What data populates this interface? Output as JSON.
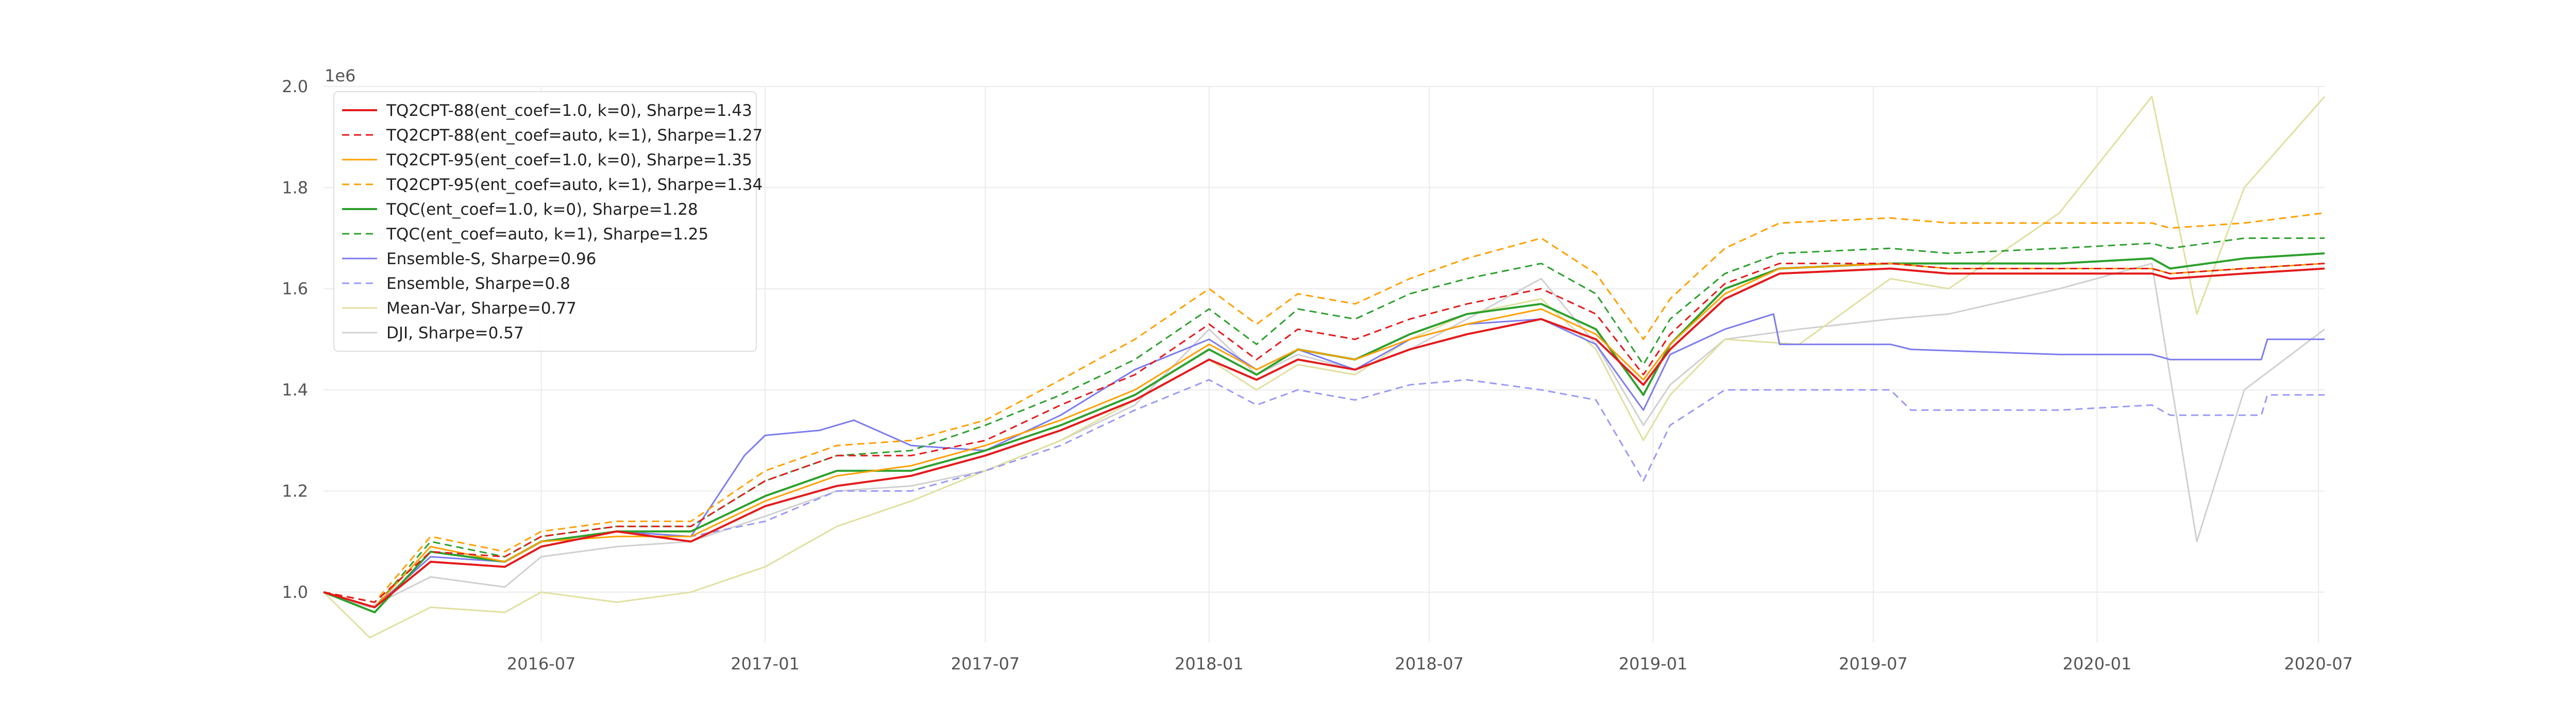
{
  "chart_data": {
    "type": "line",
    "exponent_label": "1e6",
    "xlim": [
      "2016-01-04",
      "2020-07-06"
    ],
    "ylim": [
      0.9,
      2.0
    ],
    "grid": true,
    "legend_position": "top-left",
    "x_ticks": [
      "2016-07",
      "2017-01",
      "2017-07",
      "2018-01",
      "2018-07",
      "2019-01",
      "2019-07",
      "2020-01",
      "2020-07"
    ],
    "y_ticks": [
      {
        "value": 1.0,
        "label": "1.0"
      },
      {
        "value": 1.2,
        "label": "1.2"
      },
      {
        "value": 1.4,
        "label": "1.4"
      },
      {
        "value": 1.6,
        "label": "1.6"
      },
      {
        "value": 1.8,
        "label": "1.8"
      },
      {
        "value": 2.0,
        "label": "2.0"
      }
    ],
    "series": [
      {
        "name": "TQ2CPT-88(ent_coef=1.0, k=0), Sharpe=1.43",
        "color": "#e41a1c",
        "dash": "solid",
        "width": 4,
        "x": [
          "2016-01-04",
          "2016-02-15",
          "2016-04-01",
          "2016-06-01",
          "2016-07-01",
          "2016-09-01",
          "2016-11-01",
          "2017-01-01",
          "2017-03-01",
          "2017-05-01",
          "2017-07-01",
          "2017-09-01",
          "2017-11-01",
          "2018-01-01",
          "2018-02-09",
          "2018-03-15",
          "2018-05-01",
          "2018-06-15",
          "2018-08-01",
          "2018-10-01",
          "2018-11-15",
          "2018-12-24",
          "2019-01-15",
          "2019-03-01",
          "2019-04-15",
          "2019-07-15",
          "2019-09-01",
          "2019-12-01",
          "2020-02-15",
          "2020-03-01",
          "2020-05-01",
          "2020-07-06"
        ],
        "y": [
          1.0,
          0.97,
          1.06,
          1.05,
          1.09,
          1.12,
          1.1,
          1.17,
          1.21,
          1.23,
          1.27,
          1.32,
          1.38,
          1.46,
          1.42,
          1.46,
          1.44,
          1.48,
          1.51,
          1.54,
          1.5,
          1.41,
          1.48,
          1.58,
          1.63,
          1.64,
          1.63,
          1.63,
          1.63,
          1.62,
          1.63,
          1.64
        ]
      },
      {
        "name": "TQ2CPT-88(ent_coef=auto, k=1), Sharpe=1.27",
        "color": "#e41a1c",
        "dash": "dashed",
        "width": 3,
        "x": [
          "2016-01-04",
          "2016-02-15",
          "2016-04-01",
          "2016-06-01",
          "2016-07-01",
          "2016-09-01",
          "2016-11-01",
          "2017-01-01",
          "2017-03-01",
          "2017-05-01",
          "2017-07-01",
          "2017-09-01",
          "2017-11-01",
          "2018-01-01",
          "2018-02-09",
          "2018-03-15",
          "2018-05-01",
          "2018-06-15",
          "2018-08-01",
          "2018-10-01",
          "2018-11-15",
          "2018-12-24",
          "2019-01-15",
          "2019-03-01",
          "2019-04-15",
          "2019-07-15",
          "2019-09-01",
          "2019-12-01",
          "2020-02-15",
          "2020-03-01",
          "2020-05-01",
          "2020-07-06"
        ],
        "y": [
          1.0,
          0.98,
          1.08,
          1.07,
          1.11,
          1.13,
          1.13,
          1.22,
          1.27,
          1.27,
          1.3,
          1.37,
          1.43,
          1.53,
          1.46,
          1.52,
          1.5,
          1.54,
          1.57,
          1.6,
          1.55,
          1.43,
          1.51,
          1.61,
          1.65,
          1.65,
          1.64,
          1.64,
          1.64,
          1.63,
          1.64,
          1.65
        ]
      },
      {
        "name": "TQ2CPT-95(ent_coef=1.0, k=0), Sharpe=1.35",
        "color": "#ff9f00",
        "dash": "solid",
        "width": 3,
        "x": [
          "2016-01-04",
          "2016-02-15",
          "2016-04-01",
          "2016-06-01",
          "2016-07-01",
          "2016-09-01",
          "2016-11-01",
          "2017-01-01",
          "2017-03-01",
          "2017-05-01",
          "2017-07-01",
          "2017-09-01",
          "2017-11-01",
          "2018-01-01",
          "2018-02-09",
          "2018-03-15",
          "2018-05-01",
          "2018-06-15",
          "2018-08-01",
          "2018-10-01",
          "2018-11-15",
          "2018-12-24",
          "2019-01-15",
          "2019-03-01",
          "2019-04-15",
          "2019-07-15",
          "2019-09-01",
          "2019-12-01",
          "2020-02-15",
          "2020-03-01",
          "2020-05-01",
          "2020-07-06"
        ],
        "y": [
          1.0,
          0.97,
          1.09,
          1.06,
          1.1,
          1.11,
          1.11,
          1.18,
          1.23,
          1.25,
          1.29,
          1.34,
          1.4,
          1.49,
          1.44,
          1.48,
          1.46,
          1.5,
          1.53,
          1.56,
          1.51,
          1.42,
          1.49,
          1.59,
          1.64,
          1.65,
          1.64,
          1.64,
          1.64,
          1.63,
          1.64,
          1.65
        ]
      },
      {
        "name": "TQ2CPT-95(ent_coef=auto, k=1), Sharpe=1.34",
        "color": "#ff9f00",
        "dash": "dashed",
        "width": 3,
        "x": [
          "2016-01-04",
          "2016-02-15",
          "2016-04-01",
          "2016-06-01",
          "2016-07-01",
          "2016-09-01",
          "2016-11-01",
          "2017-01-01",
          "2017-03-01",
          "2017-05-01",
          "2017-07-01",
          "2017-09-01",
          "2017-11-01",
          "2018-01-01",
          "2018-02-09",
          "2018-03-15",
          "2018-05-01",
          "2018-06-15",
          "2018-08-01",
          "2018-10-01",
          "2018-11-15",
          "2018-12-24",
          "2019-01-15",
          "2019-03-01",
          "2019-04-15",
          "2019-07-15",
          "2019-09-01",
          "2019-12-01",
          "2020-02-15",
          "2020-03-01",
          "2020-05-01",
          "2020-07-06"
        ],
        "y": [
          1.0,
          0.98,
          1.11,
          1.08,
          1.12,
          1.14,
          1.14,
          1.24,
          1.29,
          1.3,
          1.34,
          1.42,
          1.5,
          1.6,
          1.53,
          1.59,
          1.57,
          1.62,
          1.66,
          1.7,
          1.63,
          1.5,
          1.58,
          1.68,
          1.73,
          1.74,
          1.73,
          1.73,
          1.73,
          1.72,
          1.73,
          1.75
        ]
      },
      {
        "name": "TQC(ent_coef=1.0, k=0), Sharpe=1.28",
        "color": "#2ca02c",
        "dash": "solid",
        "width": 4,
        "x": [
          "2016-01-04",
          "2016-02-15",
          "2016-04-01",
          "2016-06-01",
          "2016-07-01",
          "2016-09-01",
          "2016-11-01",
          "2017-01-01",
          "2017-03-01",
          "2017-05-01",
          "2017-07-01",
          "2017-09-01",
          "2017-11-01",
          "2018-01-01",
          "2018-02-09",
          "2018-03-15",
          "2018-05-01",
          "2018-06-15",
          "2018-08-01",
          "2018-10-01",
          "2018-11-15",
          "2018-12-24",
          "2019-01-15",
          "2019-03-01",
          "2019-04-15",
          "2019-07-15",
          "2019-09-01",
          "2019-12-01",
          "2020-02-15",
          "2020-03-01",
          "2020-05-01",
          "2020-07-06"
        ],
        "y": [
          1.0,
          0.96,
          1.08,
          1.06,
          1.1,
          1.12,
          1.12,
          1.19,
          1.24,
          1.24,
          1.28,
          1.33,
          1.39,
          1.48,
          1.43,
          1.48,
          1.46,
          1.51,
          1.55,
          1.57,
          1.52,
          1.39,
          1.49,
          1.6,
          1.64,
          1.65,
          1.65,
          1.65,
          1.66,
          1.64,
          1.66,
          1.67
        ]
      },
      {
        "name": "TQC(ent_coef=auto, k=1), Sharpe=1.25",
        "color": "#2ca02c",
        "dash": "dashed",
        "width": 3,
        "x": [
          "2016-01-04",
          "2016-02-15",
          "2016-04-01",
          "2016-06-01",
          "2016-07-01",
          "2016-09-01",
          "2016-11-01",
          "2017-01-01",
          "2017-03-01",
          "2017-05-01",
          "2017-07-01",
          "2017-09-01",
          "2017-11-01",
          "2018-01-01",
          "2018-02-09",
          "2018-03-15",
          "2018-05-01",
          "2018-06-15",
          "2018-08-01",
          "2018-10-01",
          "2018-11-15",
          "2018-12-24",
          "2019-01-15",
          "2019-03-01",
          "2019-04-15",
          "2019-07-15",
          "2019-09-01",
          "2019-12-01",
          "2020-02-15",
          "2020-03-01",
          "2020-05-01",
          "2020-07-06"
        ],
        "y": [
          1.0,
          0.97,
          1.1,
          1.07,
          1.11,
          1.13,
          1.13,
          1.22,
          1.27,
          1.28,
          1.33,
          1.39,
          1.46,
          1.56,
          1.49,
          1.56,
          1.54,
          1.59,
          1.62,
          1.65,
          1.59,
          1.45,
          1.54,
          1.63,
          1.67,
          1.68,
          1.67,
          1.68,
          1.69,
          1.68,
          1.7,
          1.7
        ]
      },
      {
        "name": "Ensemble-S, Sharpe=0.96",
        "color": "#7b7bf0",
        "dash": "solid",
        "width": 3,
        "x": [
          "2016-01-04",
          "2016-02-15",
          "2016-04-01",
          "2016-06-01",
          "2016-07-01",
          "2016-09-01",
          "2016-11-01",
          "2016-12-15",
          "2017-01-01",
          "2017-02-15",
          "2017-03-15",
          "2017-05-01",
          "2017-07-01",
          "2017-09-01",
          "2017-11-01",
          "2018-01-01",
          "2018-02-09",
          "2018-03-15",
          "2018-05-01",
          "2018-06-15",
          "2018-08-01",
          "2018-10-01",
          "2018-11-15",
          "2018-12-24",
          "2019-01-15",
          "2019-03-01",
          "2019-04-10",
          "2019-04-15",
          "2019-07-15",
          "2019-08-01",
          "2019-12-01",
          "2020-02-15",
          "2020-03-01",
          "2020-05-15",
          "2020-05-20",
          "2020-07-06"
        ],
        "y": [
          1.0,
          0.97,
          1.07,
          1.06,
          1.1,
          1.12,
          1.11,
          1.27,
          1.31,
          1.32,
          1.34,
          1.29,
          1.28,
          1.35,
          1.44,
          1.5,
          1.44,
          1.48,
          1.44,
          1.5,
          1.53,
          1.54,
          1.49,
          1.36,
          1.47,
          1.52,
          1.55,
          1.49,
          1.49,
          1.48,
          1.47,
          1.47,
          1.46,
          1.46,
          1.5,
          1.5
        ]
      },
      {
        "name": "Ensemble, Sharpe=0.8",
        "color": "#9a9af5",
        "dash": "dashed",
        "width": 3,
        "x": [
          "2016-01-04",
          "2016-02-15",
          "2016-04-01",
          "2016-06-01",
          "2016-07-01",
          "2016-09-01",
          "2016-11-01",
          "2017-01-01",
          "2017-03-01",
          "2017-05-01",
          "2017-07-01",
          "2017-09-01",
          "2017-11-01",
          "2018-01-01",
          "2018-02-09",
          "2018-03-15",
          "2018-05-01",
          "2018-06-15",
          "2018-08-01",
          "2018-10-01",
          "2018-11-15",
          "2018-12-24",
          "2019-01-15",
          "2019-03-01",
          "2019-04-15",
          "2019-07-15",
          "2019-08-01",
          "2019-12-01",
          "2020-02-15",
          "2020-03-01",
          "2020-05-15",
          "2020-05-20",
          "2020-07-06"
        ],
        "y": [
          1.0,
          0.97,
          1.06,
          1.05,
          1.09,
          1.12,
          1.11,
          1.14,
          1.2,
          1.2,
          1.24,
          1.29,
          1.36,
          1.42,
          1.37,
          1.4,
          1.38,
          1.41,
          1.42,
          1.4,
          1.38,
          1.22,
          1.33,
          1.4,
          1.4,
          1.4,
          1.36,
          1.36,
          1.37,
          1.35,
          1.35,
          1.39,
          1.39
        ]
      },
      {
        "name": "Mean-Var, Sharpe=0.77",
        "color": "#e0e0a0",
        "dash": "solid",
        "width": 3,
        "x": [
          "2016-01-04",
          "2016-02-11",
          "2016-04-01",
          "2016-06-01",
          "2016-07-01",
          "2016-09-01",
          "2016-11-01",
          "2017-01-01",
          "2017-03-01",
          "2017-05-01",
          "2017-07-01",
          "2017-09-01",
          "2017-11-01",
          "2018-01-01",
          "2018-02-09",
          "2018-03-15",
          "2018-05-01",
          "2018-06-15",
          "2018-08-01",
          "2018-10-01",
          "2018-11-15",
          "2018-12-24",
          "2019-01-15",
          "2019-03-01",
          "2019-05-01",
          "2019-07-15",
          "2019-09-01",
          "2019-12-01",
          "2020-02-15",
          "2020-03-23",
          "2020-05-01",
          "2020-07-06"
        ],
        "y": [
          1.0,
          0.91,
          0.97,
          0.96,
          1.0,
          0.98,
          1.0,
          1.05,
          1.13,
          1.18,
          1.24,
          1.3,
          1.38,
          1.46,
          1.4,
          1.45,
          1.43,
          1.5,
          1.55,
          1.58,
          1.48,
          1.3,
          1.39,
          1.5,
          1.49,
          1.62,
          1.6,
          1.75,
          1.98,
          1.55,
          1.8,
          1.98
        ]
      },
      {
        "name": "DJI, Sharpe=0.57",
        "color": "#d0d0d0",
        "dash": "solid",
        "width": 3,
        "x": [
          "2016-01-04",
          "2016-02-11",
          "2016-04-01",
          "2016-06-01",
          "2016-07-01",
          "2016-09-01",
          "2016-11-01",
          "2017-01-01",
          "2017-03-01",
          "2017-05-01",
          "2017-07-01",
          "2017-09-01",
          "2017-11-01",
          "2018-01-01",
          "2018-02-09",
          "2018-03-15",
          "2018-05-01",
          "2018-06-15",
          "2018-08-01",
          "2018-10-01",
          "2018-11-15",
          "2018-12-24",
          "2019-01-15",
          "2019-03-01",
          "2019-05-01",
          "2019-07-15",
          "2019-09-01",
          "2019-12-01",
          "2020-02-15",
          "2020-03-23",
          "2020-05-01",
          "2020-07-06"
        ],
        "y": [
          1.0,
          0.97,
          1.03,
          1.01,
          1.07,
          1.09,
          1.1,
          1.15,
          1.2,
          1.21,
          1.24,
          1.3,
          1.37,
          1.52,
          1.43,
          1.47,
          1.44,
          1.48,
          1.54,
          1.62,
          1.49,
          1.33,
          1.41,
          1.5,
          1.52,
          1.54,
          1.55,
          1.6,
          1.65,
          1.1,
          1.4,
          1.52
        ]
      }
    ]
  }
}
